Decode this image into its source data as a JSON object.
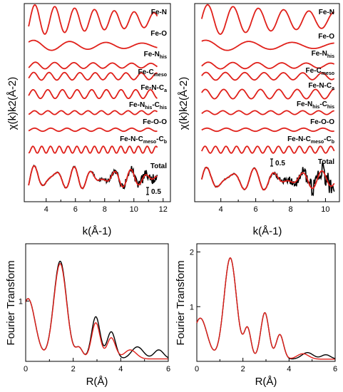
{
  "chart_data": [
    {
      "id": "exafs-left",
      "type": "line",
      "xlabel": "k(Å-1)",
      "ylabel": "χ(k)k2(Å-2)",
      "xticks": [
        "4",
        "6",
        "8",
        "10",
        "12"
      ],
      "xlim": [
        2.5,
        12.5
      ],
      "scale_bar": "0.5",
      "paths": [
        {
          "base": "Fe-N",
          "sub": "",
          "amp": 1.0,
          "freq": 1.55,
          "decay": 0.09,
          "phase": 0.5
        },
        {
          "base": "Fe-O",
          "sub": "",
          "amp": 0.35,
          "freq": 0.85,
          "decay": 0.1,
          "phase": 1.2
        },
        {
          "base": "Fe-N",
          "sub": "his",
          "amp": 0.22,
          "freq": 1.6,
          "decay": 0.05,
          "phase": 0.3
        },
        {
          "base": "Fe-C",
          "sub": "meso",
          "amp": 0.25,
          "freq": 2.0,
          "decay": 0.02,
          "phase": 0.7
        },
        {
          "base": "Fe-N-C",
          "sub": "a",
          "amp": 0.28,
          "freq": 2.1,
          "decay": 0.0,
          "phase": 0.9
        },
        {
          "base": "Fe-N",
          "sub": "his",
          "rest": "-C",
          "sub2": "his",
          "amp": 0.12,
          "freq": 2.3,
          "decay": 0.0,
          "phase": 0.2
        },
        {
          "base": "Fe-O-O",
          "sub": "",
          "amp": 0.1,
          "freq": 1.9,
          "decay": 0.0,
          "phase": 0.4
        },
        {
          "base": "Fe-N-C",
          "sub": "meso",
          "rest": "-C",
          "sub2": "b",
          "amp": 0.22,
          "freq": 3.5,
          "decay": 0.0,
          "phase": 0.6
        }
      ],
      "total": {
        "label": "Total"
      }
    },
    {
      "id": "exafs-right",
      "type": "line",
      "xlabel": "k(Å-1)",
      "ylabel": "χ(k)k2(Å-2)",
      "xticks": [
        "4",
        "6",
        "8",
        "10"
      ],
      "xlim": [
        2.5,
        10.8
      ],
      "scale_bar": "0.5",
      "paths": [
        {
          "base": "Fe-N",
          "sub": "",
          "amp": 1.0,
          "freq": 1.45,
          "decay": 0.09,
          "phase": 0.5
        },
        {
          "base": "Fe-O",
          "sub": "",
          "amp": 0.35,
          "freq": 0.85,
          "decay": 0.1,
          "phase": 1.2
        },
        {
          "base": "Fe-N",
          "sub": "his",
          "amp": 0.22,
          "freq": 1.5,
          "decay": 0.05,
          "phase": 0.3
        },
        {
          "base": "Fe-C",
          "sub": "meso",
          "amp": 0.25,
          "freq": 1.9,
          "decay": 0.02,
          "phase": 0.7
        },
        {
          "base": "Fe-N-C",
          "sub": "a",
          "amp": 0.3,
          "freq": 2.0,
          "decay": 0.0,
          "phase": 0.9
        },
        {
          "base": "Fe-N",
          "sub": "his",
          "rest": "-C",
          "sub2": "his",
          "amp": 0.12,
          "freq": 2.3,
          "decay": 0.0,
          "phase": 0.2
        },
        {
          "base": "Fe-O-O",
          "sub": "",
          "amp": 0.1,
          "freq": 1.9,
          "decay": 0.0,
          "phase": 0.4
        },
        {
          "base": "Fe-N-C",
          "sub": "meso",
          "rest": "-C",
          "sub2": "b",
          "amp": 0.22,
          "freq": 3.5,
          "decay": 0.0,
          "phase": 0.6
        }
      ],
      "total": {
        "label": "Total"
      }
    },
    {
      "id": "ft-left",
      "type": "line",
      "xlabel": "R(Å)",
      "ylabel": "Fourier Transform",
      "xlim": [
        0,
        6
      ],
      "ylim": [
        0,
        1.95
      ],
      "xticks": [
        "0",
        "2",
        "4",
        "6"
      ],
      "yticks": [
        {
          "v": 1,
          "label": "1"
        }
      ],
      "series": [
        {
          "color": "#000000",
          "peaks": [
            [
              0.1,
              1.0,
              0.3
            ],
            [
              1.45,
              1.62,
              0.27
            ],
            [
              2.25,
              0.18,
              0.15
            ],
            [
              2.95,
              0.7,
              0.18
            ],
            [
              3.6,
              0.45,
              0.18
            ],
            [
              4.7,
              0.2,
              0.25
            ],
            [
              5.6,
              0.15,
              0.2
            ]
          ]
        },
        {
          "color": "#e0201a",
          "peaks": [
            [
              0.1,
              1.0,
              0.3
            ],
            [
              1.45,
              1.58,
              0.27
            ],
            [
              2.25,
              0.18,
              0.15
            ],
            [
              2.95,
              0.6,
              0.18
            ],
            [
              3.6,
              0.35,
              0.18
            ],
            [
              4.4,
              0.15,
              0.25
            ]
          ]
        }
      ]
    },
    {
      "id": "ft-right",
      "type": "line",
      "xlabel": "R(Å)",
      "ylabel": "Fourier Transform",
      "xlim": [
        0,
        6
      ],
      "ylim": [
        0,
        2.15
      ],
      "xticks": [
        "0",
        "2",
        "4",
        "6"
      ],
      "yticks": [
        {
          "v": 1,
          "label": "1"
        },
        {
          "v": 2,
          "label": "2"
        }
      ],
      "series": [
        {
          "color": "#000000",
          "peaks": [
            [
              0.15,
              0.75,
              0.3
            ],
            [
              1.45,
              1.85,
              0.27
            ],
            [
              2.2,
              0.55,
              0.15
            ],
            [
              2.95,
              0.85,
              0.18
            ],
            [
              3.6,
              0.45,
              0.16
            ],
            [
              4.8,
              0.12,
              0.25
            ],
            [
              5.6,
              0.08,
              0.2
            ]
          ]
        },
        {
          "color": "#e0201a",
          "peaks": [
            [
              0.15,
              0.75,
              0.3
            ],
            [
              1.45,
              1.85,
              0.27
            ],
            [
              2.2,
              0.55,
              0.15
            ],
            [
              2.95,
              0.85,
              0.18
            ],
            [
              3.6,
              0.45,
              0.16
            ],
            [
              4.6,
              0.1,
              0.25
            ]
          ]
        }
      ]
    }
  ]
}
